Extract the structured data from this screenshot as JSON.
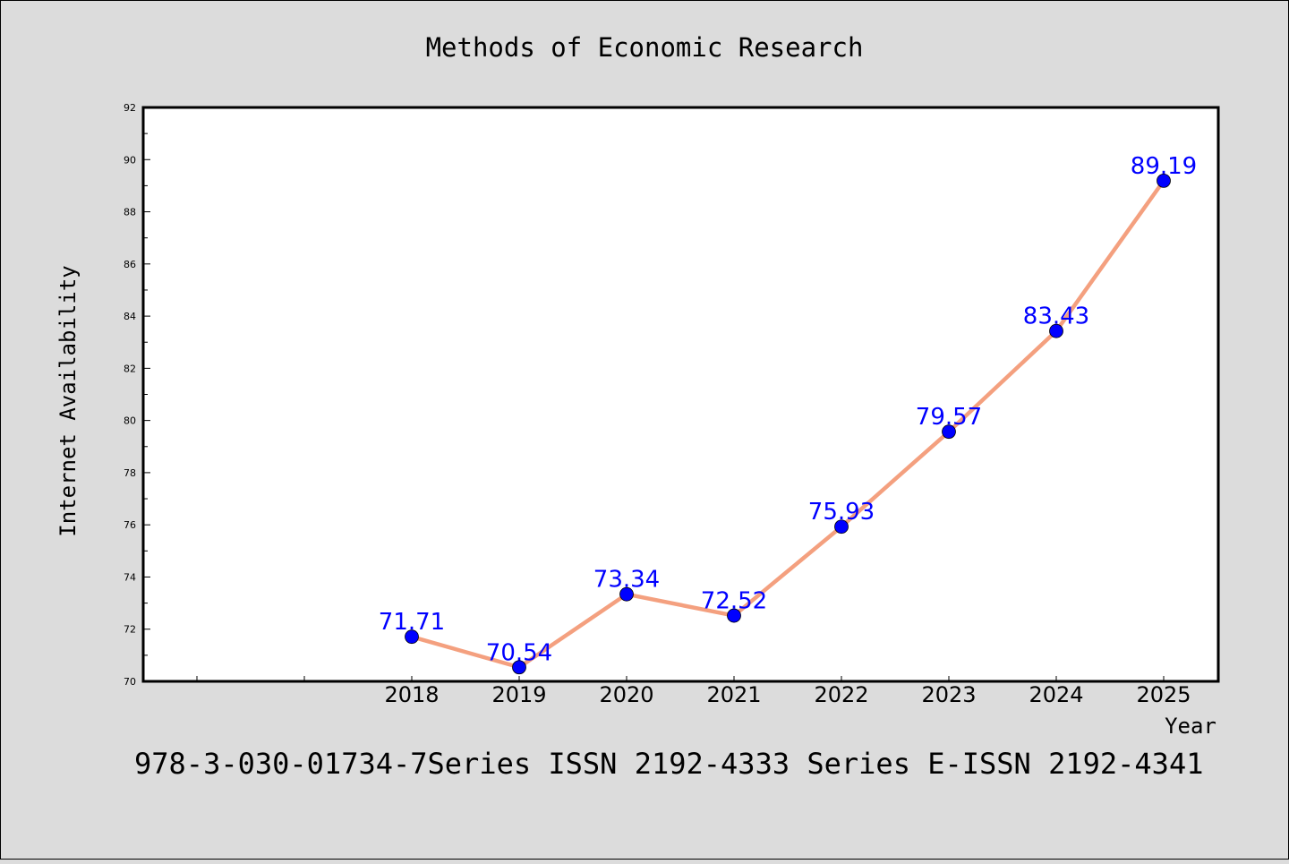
{
  "chart_data": {
    "type": "line",
    "title": "Methods of Economic Research",
    "xlabel": "Year",
    "ylabel": "Internet Availability",
    "x": [
      "2018",
      "2019",
      "2020",
      "2021",
      "2022",
      "2023",
      "2024",
      "2025"
    ],
    "series": [
      {
        "values": [
          71.71,
          70.54,
          73.34,
          72.52,
          75.93,
          79.57,
          83.43,
          89.19
        ],
        "line_color": "#f4a07f",
        "marker_color": "#0000ff"
      }
    ],
    "data_labels": [
      "71.71",
      "70.54",
      "73.34",
      "72.52",
      "75.93",
      "79.57",
      "83.43",
      "89.19"
    ],
    "ylim": [
      70,
      92
    ],
    "yticks": [
      "70",
      "72",
      "74",
      "76",
      "78",
      "80",
      "82",
      "84",
      "86",
      "88",
      "90",
      "92"
    ],
    "grid": false,
    "background": "#dcdcdc",
    "plot_background": "#ffffff"
  },
  "footer": {
    "caption": "978-3-030-01734-7Series ISSN 2192-4333 Series E-ISSN 2192-4341"
  }
}
